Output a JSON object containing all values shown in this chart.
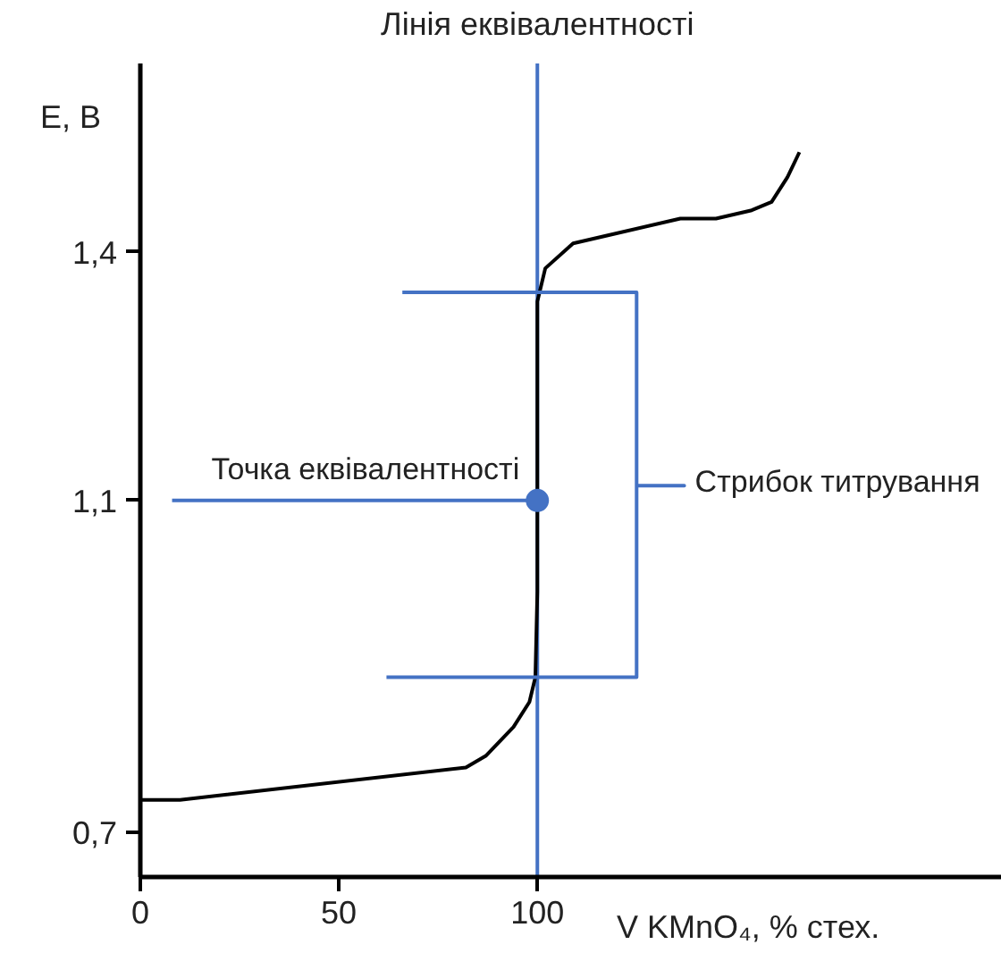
{
  "chart_data": {
    "type": "line",
    "xlabel": "V KMnO₄, % стех.",
    "ylabel": "E, В",
    "xlim": [
      0,
      217
    ],
    "ylim": [
      0.646,
      1.627
    ],
    "xticks": [
      0,
      50,
      100
    ],
    "yticks": [
      {
        "value": 0.7,
        "label": "0,7"
      },
      {
        "value": 1.1,
        "label": "1,1"
      },
      {
        "value": 1.4,
        "label": "1,4"
      }
    ],
    "series": [
      {
        "color": "#000000",
        "x": [
          0,
          10,
          82,
          87,
          94,
          98,
          99.5,
          100,
          100,
          100,
          102,
          109,
          118,
          136,
          145,
          154,
          159,
          163,
          166
        ],
        "values": [
          0.739,
          0.739,
          0.778,
          0.792,
          0.827,
          0.857,
          0.887,
          0.99,
          1.06,
          1.34,
          1.38,
          1.41,
          1.42,
          1.44,
          1.44,
          1.45,
          1.46,
          1.49,
          1.52
        ]
      },
      {
        "color": "#4472c4",
        "x": [
          8,
          100
        ],
        "values": [
          1.1,
          1.1
        ]
      },
      {
        "color": "#4472c4",
        "x": [
          62,
          125,
          125,
          137,
          125,
          125,
          66
        ],
        "values": [
          0.887,
          0.887,
          1.118,
          1.118,
          1.118,
          1.351,
          1.351
        ]
      },
      {
        "type": "scatter",
        "color": "#4472c4",
        "marker": "circle",
        "x": [
          100
        ],
        "values": [
          1.1
        ]
      }
    ],
    "ref_lines": [
      {
        "axis": "x",
        "value": 100,
        "label": "Лінія еквівалентності",
        "color": "#4472c4"
      }
    ],
    "annotations": [
      {
        "text": "Точка еквівалентності",
        "x": 100,
        "y": 1.1
      },
      {
        "text": "Стрибок титрування",
        "x": 137,
        "y": 1.118
      }
    ]
  }
}
